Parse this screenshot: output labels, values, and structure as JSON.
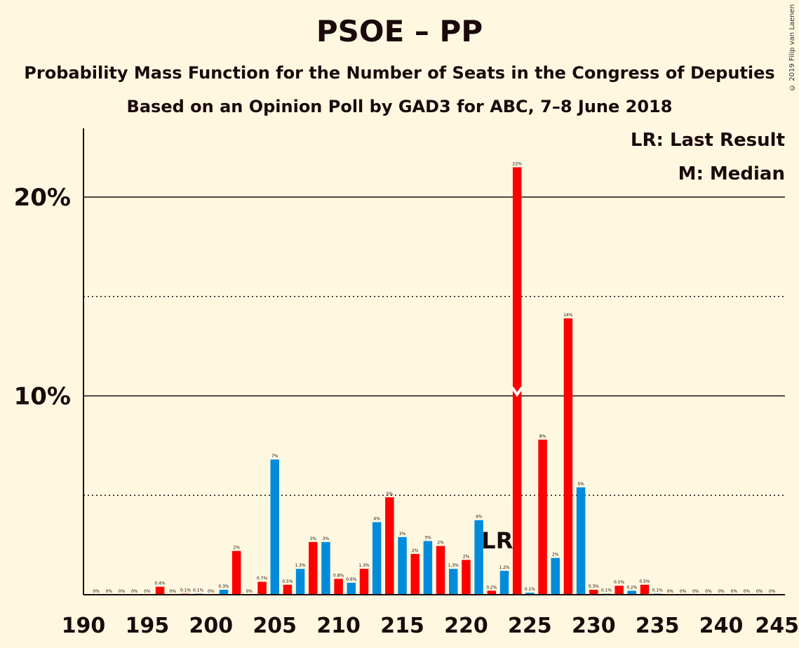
{
  "chart_data": {
    "type": "bar",
    "title": "PSOE – PP",
    "subtitle": "Probability Mass Function for the Number of Seats in the Congress of Deputies",
    "subtitle2": "Based on an Opinion Poll by GAD3 for ABC, 7–8 June 2018",
    "copyright": "© 2019 Filip van Laenen",
    "legend": [
      "LR: Last Result",
      "M: Median"
    ],
    "ylim": [
      0,
      23.5
    ],
    "yticks": [
      {
        "value": 10,
        "label": "10%"
      },
      {
        "value": 20,
        "label": "20%"
      }
    ],
    "dotted_lines": [
      5,
      15
    ],
    "xlim": [
      190,
      245
    ],
    "xticks": [
      190,
      195,
      200,
      205,
      210,
      215,
      220,
      225,
      230,
      235,
      240,
      245
    ],
    "colors": {
      "even": "#ff0000",
      "odd": "#008cdb",
      "median_marker": "#ffffff"
    },
    "last_result": {
      "seat": 222,
      "label": "LR"
    },
    "median": 224,
    "bars": [
      {
        "seat": 191,
        "value": 0,
        "label": "0%"
      },
      {
        "seat": 192,
        "value": 0,
        "label": "0%"
      },
      {
        "seat": 193,
        "value": 0,
        "label": "0%"
      },
      {
        "seat": 194,
        "value": 0,
        "label": "0%"
      },
      {
        "seat": 195,
        "value": 0,
        "label": "0%"
      },
      {
        "seat": 196,
        "value": 0.4,
        "label": "0.4%"
      },
      {
        "seat": 197,
        "value": 0,
        "label": "0%"
      },
      {
        "seat": 198,
        "value": 0.05,
        "label": "0.1%"
      },
      {
        "seat": 199,
        "value": 0.05,
        "label": "0.1%"
      },
      {
        "seat": 200,
        "value": 0,
        "label": "0%"
      },
      {
        "seat": 201,
        "value": 0.25,
        "label": "0.3%"
      },
      {
        "seat": 202,
        "value": 2.2,
        "label": "2%"
      },
      {
        "seat": 203,
        "value": 0,
        "label": "0%"
      },
      {
        "seat": 204,
        "value": 0.65,
        "label": "0.7%"
      },
      {
        "seat": 205,
        "value": 6.8,
        "label": "7%"
      },
      {
        "seat": 206,
        "value": 0.5,
        "label": "0.5%"
      },
      {
        "seat": 207,
        "value": 1.3,
        "label": "1.3%"
      },
      {
        "seat": 208,
        "value": 2.65,
        "label": "3%"
      },
      {
        "seat": 209,
        "value": 2.65,
        "label": "3%"
      },
      {
        "seat": 210,
        "value": 0.8,
        "label": "0.8%"
      },
      {
        "seat": 211,
        "value": 0.6,
        "label": "0.6%"
      },
      {
        "seat": 212,
        "value": 1.3,
        "label": "1.3%"
      },
      {
        "seat": 213,
        "value": 3.65,
        "label": "4%"
      },
      {
        "seat": 214,
        "value": 4.9,
        "label": "5%"
      },
      {
        "seat": 215,
        "value": 2.9,
        "label": "3%"
      },
      {
        "seat": 216,
        "value": 2.05,
        "label": "2%"
      },
      {
        "seat": 217,
        "value": 2.7,
        "label": "3%"
      },
      {
        "seat": 218,
        "value": 2.45,
        "label": "2%"
      },
      {
        "seat": 219,
        "value": 1.3,
        "label": "1.3%"
      },
      {
        "seat": 220,
        "value": 1.75,
        "label": "2%"
      },
      {
        "seat": 221,
        "value": 3.75,
        "label": "4%"
      },
      {
        "seat": 222,
        "value": 0.2,
        "label": "0.2%"
      },
      {
        "seat": 223,
        "value": 1.2,
        "label": "1.2%"
      },
      {
        "seat": 224,
        "value": 21.5,
        "label": "22%"
      },
      {
        "seat": 225,
        "value": 0.1,
        "label": "0.1%"
      },
      {
        "seat": 226,
        "value": 7.8,
        "label": "8%"
      },
      {
        "seat": 227,
        "value": 1.85,
        "label": "2%"
      },
      {
        "seat": 228,
        "value": 13.9,
        "label": "14%"
      },
      {
        "seat": 229,
        "value": 5.4,
        "label": "5%"
      },
      {
        "seat": 230,
        "value": 0.25,
        "label": "0.3%"
      },
      {
        "seat": 231,
        "value": 0.05,
        "label": "0.1%"
      },
      {
        "seat": 232,
        "value": 0.45,
        "label": "0.5%"
      },
      {
        "seat": 233,
        "value": 0.2,
        "label": "0.2%"
      },
      {
        "seat": 234,
        "value": 0.5,
        "label": "0.5%"
      },
      {
        "seat": 235,
        "value": 0.05,
        "label": "0.1%"
      },
      {
        "seat": 236,
        "value": 0,
        "label": "0%"
      },
      {
        "seat": 237,
        "value": 0,
        "label": "0%"
      },
      {
        "seat": 238,
        "value": 0,
        "label": "0%"
      },
      {
        "seat": 239,
        "value": 0,
        "label": "0%"
      },
      {
        "seat": 240,
        "value": 0,
        "label": "0%"
      },
      {
        "seat": 241,
        "value": 0,
        "label": "0%"
      },
      {
        "seat": 242,
        "value": 0,
        "label": "0%"
      },
      {
        "seat": 243,
        "value": 0,
        "label": "0%"
      },
      {
        "seat": 244,
        "value": 0,
        "label": "0%"
      }
    ]
  }
}
